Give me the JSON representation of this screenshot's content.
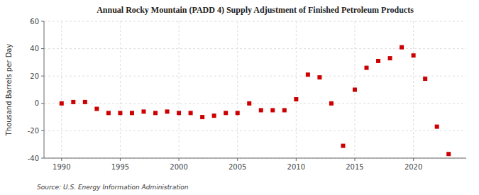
{
  "chart_data": {
    "type": "scatter",
    "title": "Annual Rocky Mountain (PADD 4) Supply Adjustment of Finished Petroleum Products",
    "y_label": "Thousand Barrels per Day",
    "annotation": "Source: U.S. Energy Information Administration",
    "x": [
      1990,
      1991,
      1992,
      1993,
      1994,
      1995,
      1996,
      1997,
      1998,
      1999,
      2000,
      2001,
      2002,
      2003,
      2004,
      2005,
      2006,
      2007,
      2008,
      2009,
      2010,
      2011,
      2012,
      2013,
      2014,
      2015,
      2016,
      2017,
      2018,
      2019,
      2020,
      2021,
      2022,
      2023
    ],
    "values": [
      0,
      1,
      1,
      -4,
      -7,
      -7,
      -7,
      -6,
      -7,
      -6,
      -7,
      -7,
      -10,
      -9,
      -7,
      -7,
      0,
      -5,
      -5,
      -5,
      3,
      21,
      19,
      0,
      -31,
      10,
      26,
      31,
      33,
      41,
      35,
      18,
      -17,
      -37
    ],
    "color": "#cc0000",
    "marker": "square",
    "xlim": [
      1988.5,
      2024.5
    ],
    "xticks": [
      1990,
      1995,
      2000,
      2005,
      2010,
      2015,
      2020
    ],
    "ylim": [
      -40,
      60
    ],
    "yticks": [
      -40,
      -20,
      0,
      20,
      40,
      60
    ],
    "grid": true
  }
}
